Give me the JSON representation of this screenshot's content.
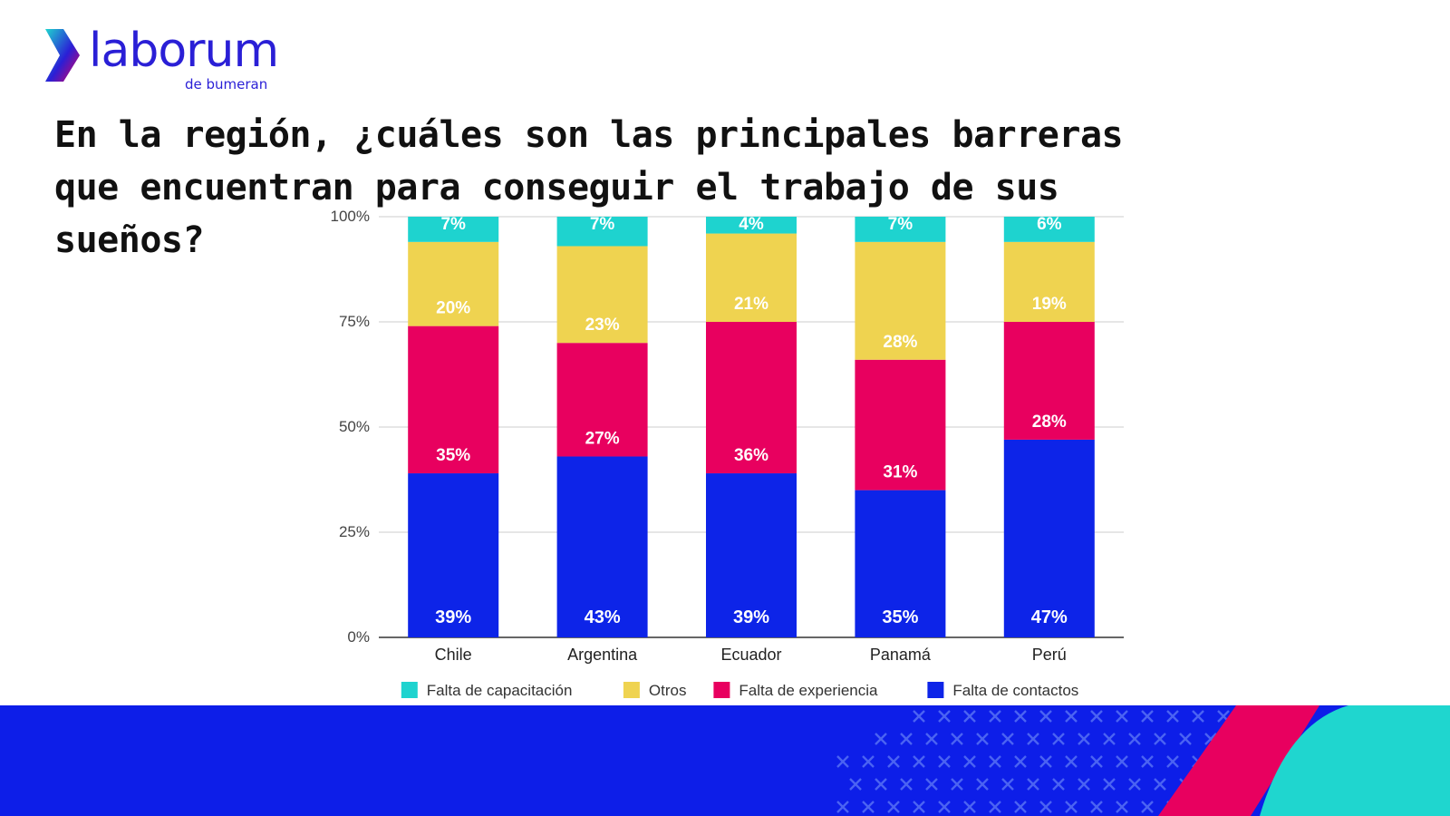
{
  "brand": {
    "name": "laborum",
    "tagline": "de bumeran",
    "colors": {
      "primary": "#2a1fd6",
      "accent_pink": "#e5005c",
      "accent_cyan": "#1fd6cf"
    }
  },
  "title": "En la región, ¿cuáles son las principales barreras que encuentran para conseguir el trabajo de sus sueños?",
  "chart_data": {
    "type": "bar",
    "stacked": true,
    "categories": [
      "Chile",
      "Argentina",
      "Ecuador",
      "Panamá",
      "Perú"
    ],
    "series": [
      {
        "name": "Falta de contactos",
        "color": "#0d24e8",
        "values": [
          39,
          43,
          39,
          35,
          47
        ],
        "labels": [
          "39%",
          "43%",
          "39%",
          "35%",
          "47%"
        ]
      },
      {
        "name": "Falta de experiencia",
        "color": "#e8005f",
        "values": [
          35,
          27,
          36,
          31,
          28
        ],
        "labels": [
          "35%",
          "27%",
          "36%",
          "31%",
          "28%"
        ]
      },
      {
        "name": "Otros",
        "color": "#efd350",
        "values": [
          20,
          23,
          21,
          28,
          19
        ],
        "labels": [
          "20%",
          "23%",
          "21%",
          "28%",
          "19%"
        ]
      },
      {
        "name": "Falta de capacitación",
        "color": "#1ed3cf",
        "values": [
          7,
          7,
          4,
          7,
          6
        ],
        "labels": [
          "7%",
          "7%",
          "4%",
          "7%",
          "6%"
        ]
      }
    ],
    "legend_order": [
      "Falta de capacitación",
      "Otros",
      "Falta de experiencia",
      "Falta de contactos"
    ],
    "ylim": [
      0,
      100
    ],
    "yticks": [
      0,
      25,
      50,
      75,
      100
    ],
    "ytick_labels": [
      "0%",
      "25%",
      "50%",
      "75%",
      "100%"
    ],
    "grid": true,
    "legend_position": "bottom"
  }
}
